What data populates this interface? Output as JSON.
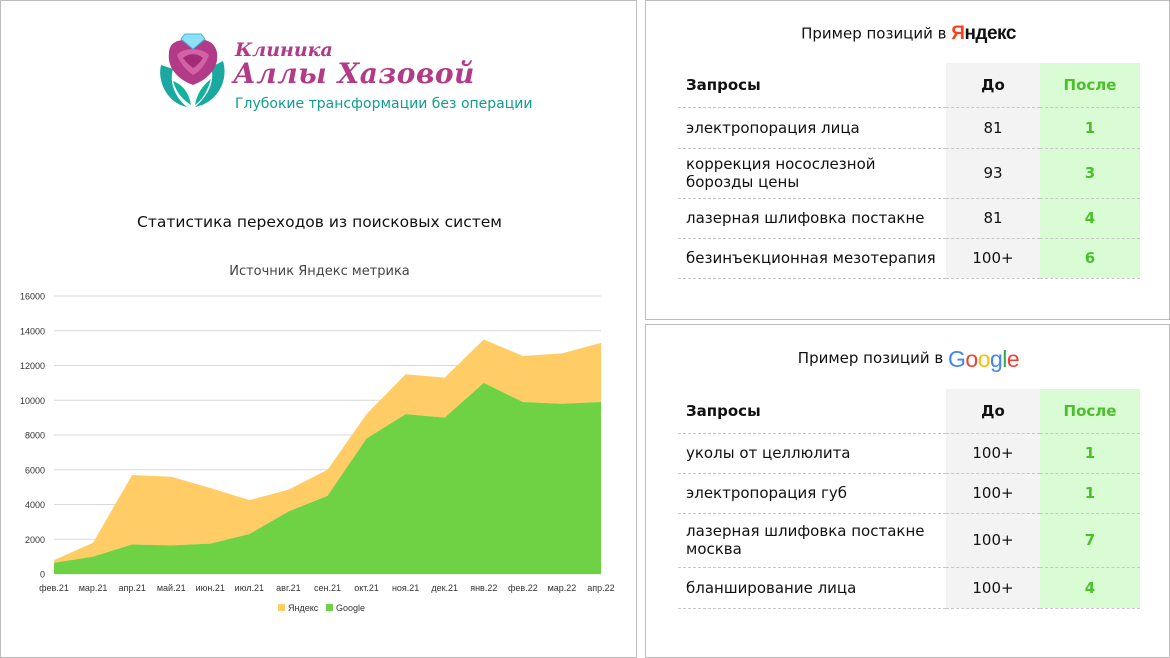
{
  "logo": {
    "brand_line1": "Клиника",
    "brand_line2": "Аллы Хазовой",
    "tagline": "Глубокие трансформации без операции"
  },
  "stats_title": "Статистика переходов из поисковых систем",
  "chart_data": {
    "type": "area",
    "stacked": true,
    "title": "Источник Яндекс метрика",
    "categories": [
      "фев.21",
      "мар.21",
      "апр.21",
      "май.21",
      "июн.21",
      "июл.21",
      "авг.21",
      "сен.21",
      "окт.21",
      "ноя.21",
      "дек.21",
      "янв.22",
      "фев.22",
      "мар.22",
      "апр.22"
    ],
    "y_ticks": [
      "0",
      "2000",
      "4000",
      "6000",
      "8000",
      "10000",
      "12000",
      "14000",
      "16000"
    ],
    "ylim": [
      0,
      16000
    ],
    "grid": true,
    "legend_position": "bottom",
    "series": [
      {
        "name": "Google",
        "color": "#6fd144",
        "values": [
          650,
          1000,
          1700,
          1650,
          1750,
          2300,
          3600,
          4500,
          7800,
          9200,
          9000,
          11000,
          9900,
          9800,
          9900
        ]
      },
      {
        "name": "Яндекс",
        "color": "#ffcc66",
        "values": [
          150,
          800,
          4000,
          3950,
          3200,
          1950,
          1250,
          1500,
          1400,
          2300,
          2300,
          2500,
          2650,
          2900,
          3400
        ]
      }
    ]
  },
  "yandex_positions": {
    "title_prefix": "Пример позиций в",
    "brand_first": "Я",
    "brand_rest": "ндекс",
    "headers": {
      "query": "Запросы",
      "before": "До",
      "after": "После"
    },
    "rows": [
      {
        "query": "электропорация лица",
        "before": "81",
        "after": "1"
      },
      {
        "query": "коррекция носослезной борозды цены",
        "before": "93",
        "after": "3"
      },
      {
        "query": "лазерная шлифовка постакне",
        "before": "81",
        "after": "4"
      },
      {
        "query": "безинъекционная мезотерапия",
        "before": "100+",
        "after": "6"
      }
    ]
  },
  "google_positions": {
    "title_prefix": "Пример позиций в",
    "brand_letters": [
      "G",
      "o",
      "o",
      "g",
      "l",
      "e"
    ],
    "brand_colors": [
      "#4285f4",
      "#ea4335",
      "#fbbc05",
      "#4285f4",
      "#34a853",
      "#ea4335"
    ],
    "headers": {
      "query": "Запросы",
      "before": "До",
      "after": "После"
    },
    "rows": [
      {
        "query": "уколы от целлюлита",
        "before": "100+",
        "after": "1"
      },
      {
        "query": "электропорация губ",
        "before": "100+",
        "after": "1"
      },
      {
        "query": "лазерная шлифовка постакне москва",
        "before": "100+",
        "after": "7"
      },
      {
        "query": "бланширование лица",
        "before": "100+",
        "after": "4"
      }
    ]
  }
}
